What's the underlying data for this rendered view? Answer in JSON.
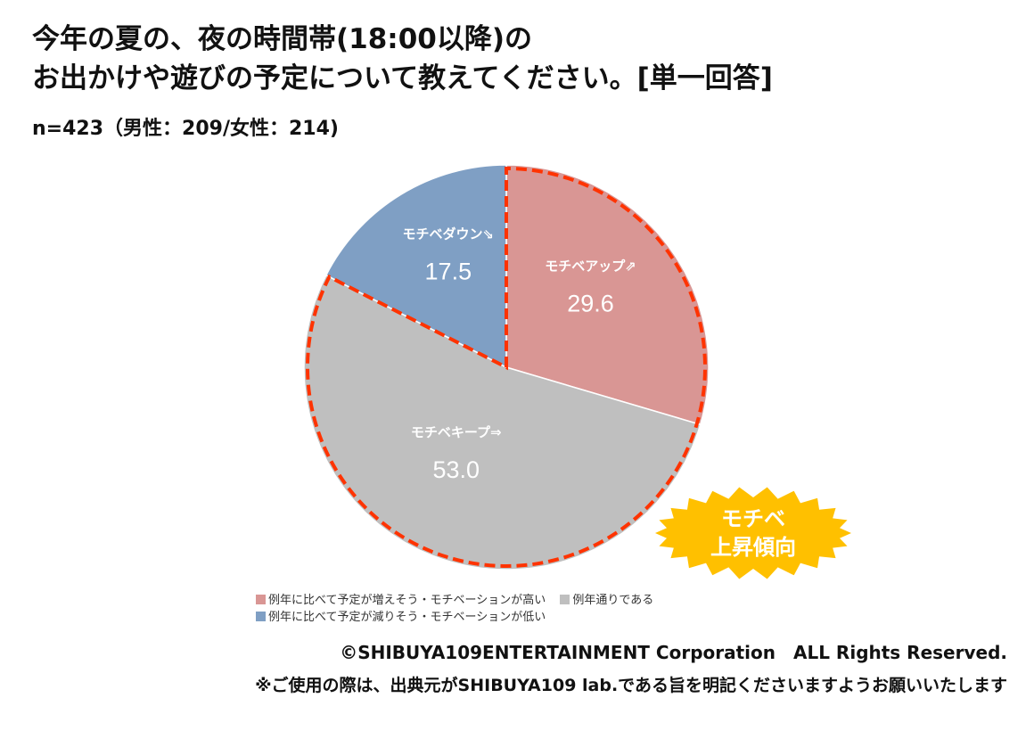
{
  "title_line1": "今年の夏の、夜の時間帯(18:00以降)の",
  "title_line2": "お出かけや遊びの予定について教えてください。[単一回答]",
  "subtitle": "n=423（男性：209/女性：214)",
  "chart_data": {
    "type": "pie",
    "unit": "%",
    "slices": [
      {
        "label": "モチベアップ⇗",
        "value": 29.6,
        "value_label": "29.6",
        "legend": "例年に比べて予定が増えそう・モチベーションが高い",
        "color": "#D99694"
      },
      {
        "label": "モチベキープ⇒",
        "value": 53.0,
        "value_label": "53.0",
        "legend": "例年通りである",
        "color": "#BFBFBF"
      },
      {
        "label": "モチベダウン⇘",
        "value": 17.5,
        "value_label": "17.5",
        "legend": "例年に比べて予定が減りそう・モチベーションが低い",
        "color": "#7F9FC4"
      }
    ],
    "highlight": {
      "outline_color": "#FF3300",
      "slices": [
        0,
        1
      ]
    },
    "badge": {
      "line1": "モチベ",
      "line2": "上昇傾向",
      "color": "#FFC000"
    }
  },
  "copyright": "©SHIBUYA109ENTERTAINMENT Corporation　ALL Rights Reserved.",
  "note": "※ご使用の際は、出典元がSHIBUYA109 lab.である旨を明記くださいますようお願いいたします"
}
